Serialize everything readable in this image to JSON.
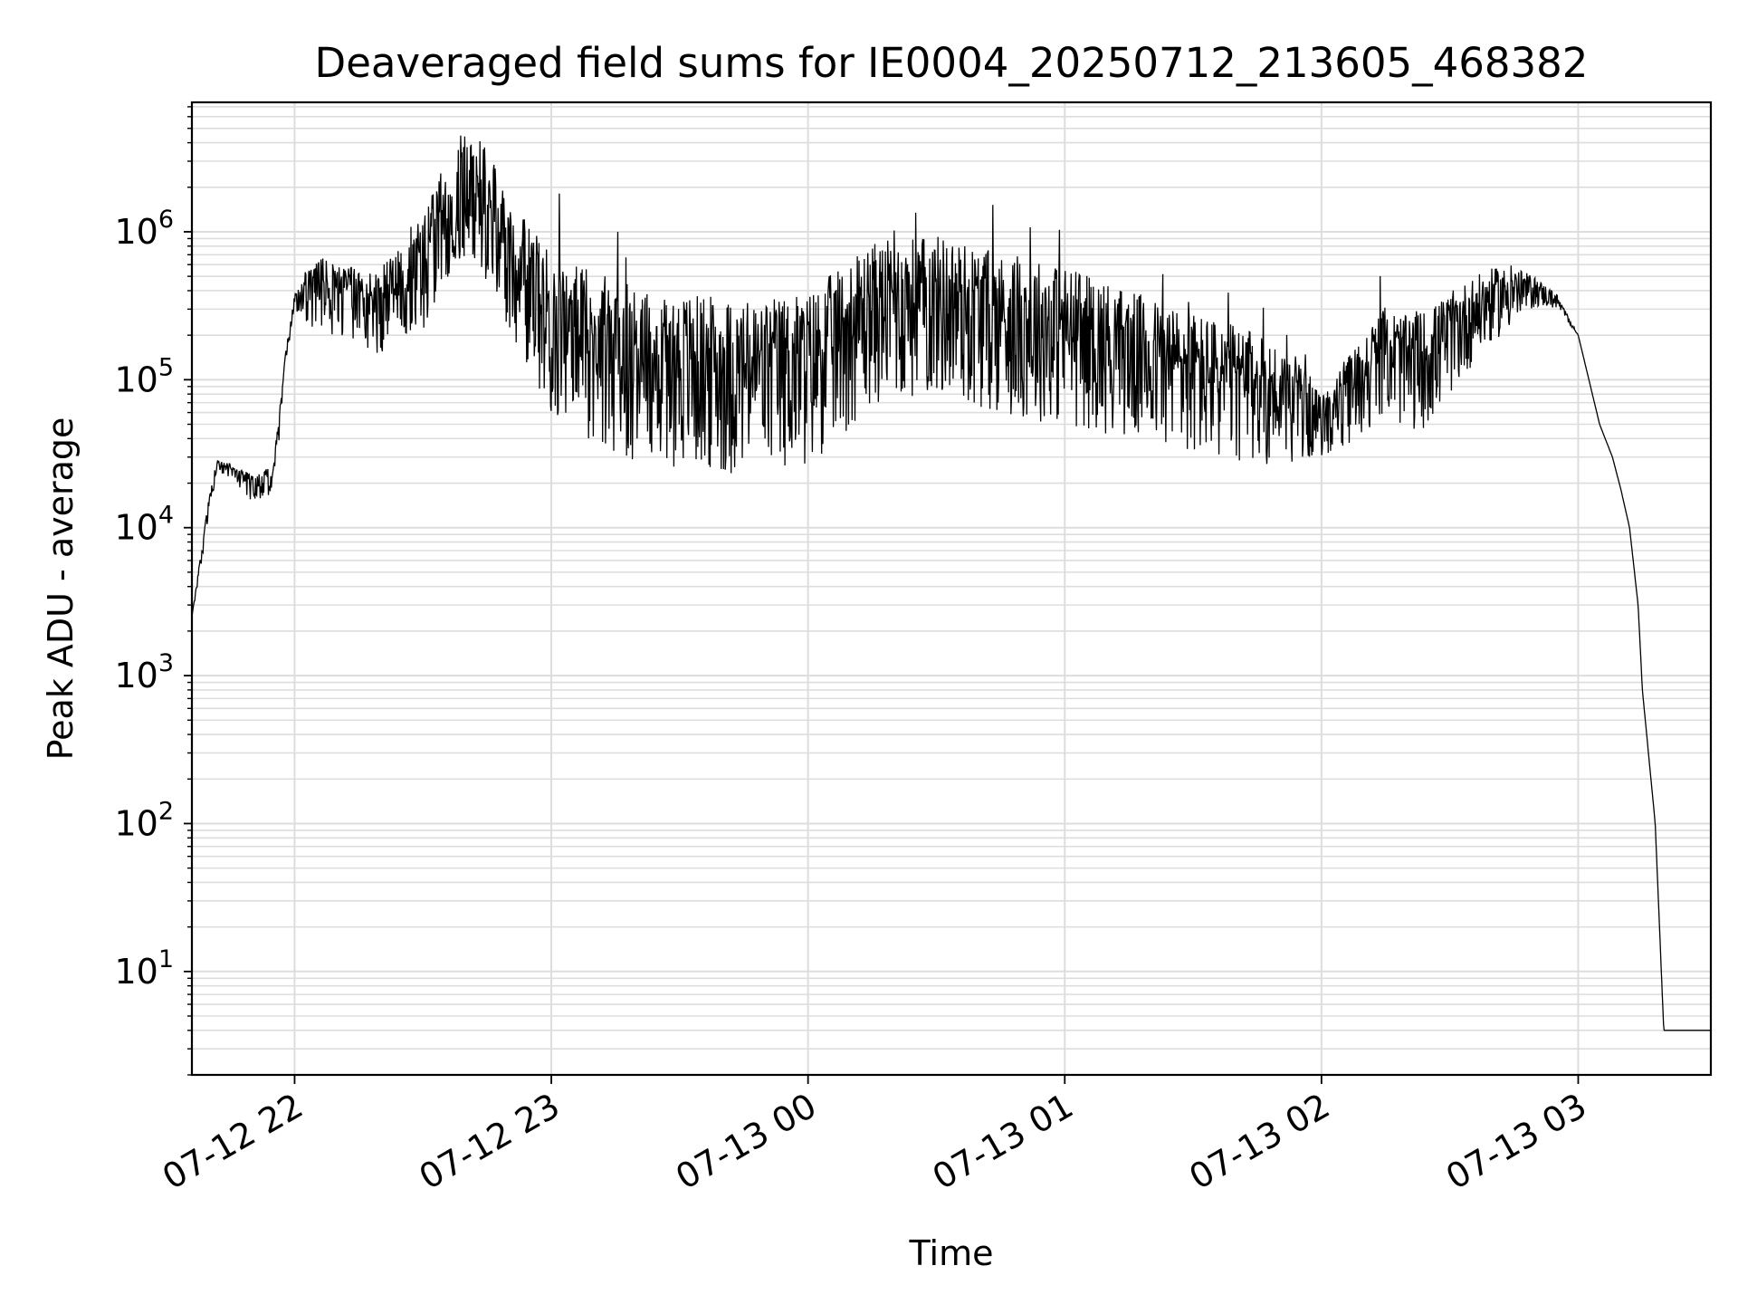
{
  "chart_data": {
    "type": "line",
    "title": "Deaveraged field sums for IE0004_20250712_213605_468382",
    "xlabel": "Time",
    "ylabel": "Peak ADU - average",
    "yscale": "log",
    "grid": true,
    "legend": "none",
    "line_color": "#000000",
    "grid_color": "#dddddd",
    "xlim": [
      "2025-07-12 21:36",
      "2025-07-13 03:31"
    ],
    "ylim": [
      2,
      7500000
    ],
    "x_ticks": [
      {
        "value": "2025-07-12 22:00",
        "label": "07-12 22"
      },
      {
        "value": "2025-07-12 23:00",
        "label": "07-12 23"
      },
      {
        "value": "2025-07-13 00:00",
        "label": "07-13 00"
      },
      {
        "value": "2025-07-13 01:00",
        "label": "07-13 01"
      },
      {
        "value": "2025-07-13 02:00",
        "label": "07-13 02"
      },
      {
        "value": "2025-07-13 03:00",
        "label": "07-13 03"
      }
    ],
    "y_ticks": [
      {
        "value": 10,
        "base": "10",
        "exp": "1"
      },
      {
        "value": 100,
        "base": "10",
        "exp": "2"
      },
      {
        "value": 1000,
        "base": "10",
        "exp": "3"
      },
      {
        "value": 10000,
        "base": "10",
        "exp": "4"
      },
      {
        "value": 100000,
        "base": "10",
        "exp": "5"
      },
      {
        "value": 1000000,
        "base": "10",
        "exp": "6"
      }
    ],
    "series": [
      {
        "x": [
          "2025-07-12 21:36",
          "2025-07-12 21:38",
          "2025-07-12 21:40",
          "2025-07-12 21:42",
          "2025-07-12 21:45",
          "2025-07-12 21:50",
          "2025-07-12 21:55",
          "2025-07-12 21:56",
          "2025-07-12 21:58",
          "2025-07-12 22:00",
          "2025-07-12 22:03",
          "2025-07-12 22:07",
          "2025-07-12 22:11",
          "2025-07-12 22:15",
          "2025-07-12 22:20",
          "2025-07-12 22:25",
          "2025-07-12 22:30",
          "2025-07-12 22:35",
          "2025-07-12 22:40",
          "2025-07-12 22:45",
          "2025-07-12 22:50",
          "2025-07-12 23:00",
          "2025-07-12 23:15",
          "2025-07-12 23:30",
          "2025-07-12 23:45",
          "2025-07-13 00:00",
          "2025-07-13 00:15",
          "2025-07-13 00:30",
          "2025-07-13 00:45",
          "2025-07-13 01:00",
          "2025-07-13 01:15",
          "2025-07-13 01:30",
          "2025-07-13 01:45",
          "2025-07-13 01:55",
          "2025-07-13 02:00",
          "2025-07-13 02:05",
          "2025-07-13 02:10",
          "2025-07-13 02:15",
          "2025-07-13 02:20",
          "2025-07-13 02:25",
          "2025-07-13 02:30",
          "2025-07-13 02:35",
          "2025-07-13 02:40",
          "2025-07-13 02:45",
          "2025-07-13 02:50",
          "2025-07-13 02:55",
          "2025-07-13 03:00",
          "2025-07-13 03:05",
          "2025-07-13 03:08",
          "2025-07-13 03:10",
          "2025-07-13 03:12",
          "2025-07-13 03:14",
          "2025-07-13 03:15",
          "2025-07-13 03:18",
          "2025-07-13 03:20",
          "2025-07-13 03:31"
        ],
        "y": [
          2500,
          6000,
          15000,
          27000,
          25000,
          20000,
          22000,
          40000,
          150000,
          350000,
          420000,
          450000,
          400000,
          380000,
          350000,
          500000,
          700000,
          1500000,
          2500000,
          1800000,
          800000,
          300000,
          180000,
          150000,
          130000,
          150000,
          350000,
          400000,
          300000,
          250000,
          180000,
          130000,
          100000,
          80000,
          55000,
          80000,
          120000,
          180000,
          140000,
          160000,
          220000,
          300000,
          380000,
          420000,
          420000,
          350000,
          200000,
          50000,
          30000,
          18000,
          10000,
          3000,
          800,
          100,
          4,
          4
        ],
        "noise_amplitude_log10": [
          0,
          0.05,
          0.05,
          0.05,
          0.05,
          0.1,
          0.1,
          0.1,
          0.05,
          0.05,
          0.2,
          0.25,
          0.25,
          0.25,
          0.3,
          0.3,
          0.4,
          0.4,
          0.45,
          0.45,
          0.45,
          0.55,
          0.6,
          0.6,
          0.6,
          0.6,
          0.55,
          0.55,
          0.55,
          0.55,
          0.5,
          0.5,
          0.45,
          0.35,
          0.2,
          0.3,
          0.35,
          0.35,
          0.4,
          0.4,
          0.35,
          0.3,
          0.25,
          0.2,
          0.1,
          0.05,
          0,
          0,
          0,
          0,
          0,
          0,
          0,
          0,
          0,
          0
        ]
      }
    ]
  }
}
